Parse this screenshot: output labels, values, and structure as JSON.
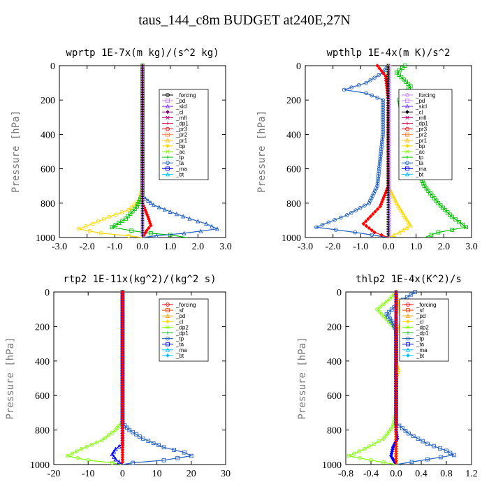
{
  "figure": {
    "title": "taus_144_c8m  BUDGET at240E,27N"
  },
  "chart_data": [
    {
      "type": "line",
      "title": "wprtp  1E-7x(m kg)/(s^2 kg)",
      "ylabel": "Pressure [hPa]",
      "xlabel": "",
      "xlim": [
        -3.0,
        3.0
      ],
      "ylim": [
        1000,
        0
      ],
      "xticks": [
        "-3.0",
        "-2.0",
        "-1.0",
        "0.0",
        "1.0",
        "2.0",
        "3.0"
      ],
      "xtick_values": [
        -3,
        -2,
        -1,
        0,
        1,
        2,
        3
      ],
      "yticks": [
        "0",
        "200",
        "400",
        "600",
        "800",
        "1000"
      ],
      "ytick_values": [
        0,
        200,
        400,
        600,
        800,
        1000
      ],
      "legend": [
        "_forcing",
        "_pd",
        "_sicl",
        "_cl",
        "_mfl",
        "_dp1",
        "_pr3",
        "_pr2",
        "_pr1",
        "_bp",
        "_ac",
        "_tp",
        "_ta",
        "_ma",
        "_bt"
      ],
      "legend_colors": [
        "#000000",
        "#c080ff",
        "#8040ff",
        "#800080",
        "#c00080",
        "#e01060",
        "#ff0000",
        "#ff8040",
        "#ffc000",
        "#ffd800",
        "#80ff00",
        "#00c000",
        "#2060c0",
        "#0000ff",
        "#00c0ff"
      ],
      "series": [
        {
          "name": "_pr1",
          "color": "#ffd800",
          "points": [
            [
              0,
              0
            ],
            [
              0,
              700
            ],
            [
              -0.1,
              780
            ],
            [
              -0.5,
              840
            ],
            [
              -1.2,
              880
            ],
            [
              -1.8,
              920
            ],
            [
              -2.3,
              950
            ],
            [
              -1.5,
              975
            ],
            [
              -0.5,
              990
            ],
            [
              0,
              1000
            ]
          ]
        },
        {
          "name": "_ac",
          "color": "#00c000",
          "points": [
            [
              0,
              0
            ],
            [
              0,
              750
            ],
            [
              -0.2,
              820
            ],
            [
              -0.6,
              890
            ],
            [
              -1.1,
              940
            ],
            [
              -0.4,
              960
            ],
            [
              0.3,
              975
            ],
            [
              1.0,
              985
            ],
            [
              1.6,
              1000
            ]
          ]
        },
        {
          "name": "_tp",
          "color": "#2060c0",
          "points": [
            [
              0,
              0
            ],
            [
              0,
              760
            ],
            [
              0.4,
              810
            ],
            [
              1.0,
              850
            ],
            [
              1.7,
              890
            ],
            [
              2.3,
              920
            ],
            [
              2.7,
              950
            ],
            [
              1.5,
              975
            ],
            [
              0.5,
              990
            ],
            [
              0,
              1000
            ]
          ]
        },
        {
          "name": "_dp1",
          "color": "#ff0000",
          "points": [
            [
              0,
              0
            ],
            [
              0,
              800
            ],
            [
              0.2,
              880
            ],
            [
              0.3,
              930
            ],
            [
              0.15,
              960
            ],
            [
              0,
              1000
            ]
          ]
        },
        {
          "name": "_bp",
          "color": "#c080ff",
          "points": [
            [
              0,
              0
            ],
            [
              0,
              1000
            ]
          ]
        },
        {
          "name": "_forcing",
          "color": "#000000",
          "points": [
            [
              0,
              0
            ],
            [
              0,
              1000
            ]
          ]
        }
      ]
    },
    {
      "type": "line",
      "title": "wpthlp  1E-4x(m K)/s^2",
      "ylabel": "Pressure [hPa]",
      "xlabel": "",
      "xlim": [
        -3.0,
        3.0
      ],
      "ylim": [
        1000,
        0
      ],
      "xticks": [
        "-3.0",
        "-2.0",
        "-1.0",
        "0.0",
        "1.0",
        "2.0",
        "3.0"
      ],
      "xtick_values": [
        -3,
        -2,
        -1,
        0,
        1,
        2,
        3
      ],
      "yticks": [
        "0",
        "200",
        "400",
        "600",
        "800",
        "1000"
      ],
      "ytick_values": [
        0,
        200,
        400,
        600,
        800,
        1000
      ],
      "legend": [
        "_forcing",
        "_pd",
        "_sicl",
        "_cl",
        "_mfl",
        "_dp1",
        "_pr3",
        "_pr2",
        "_pr1",
        "_bp",
        "_ac",
        "_tp",
        "_ta",
        "_ma",
        "_bt"
      ],
      "legend_colors": [
        "#c080ff",
        "#c080ff",
        "#8040ff",
        "#000000",
        "#c00080",
        "#e01060",
        "#ff0000",
        "#ff8040",
        "#ffc000",
        "#ffd800",
        "#80ff00",
        "#00c000",
        "#2060c0",
        "#0000ff",
        "#00c0ff"
      ],
      "series": [
        {
          "name": "_tp",
          "color": "#2060c0",
          "points": [
            [
              0,
              0
            ],
            [
              -0.2,
              40
            ],
            [
              -0.8,
              100
            ],
            [
              -1.6,
              140
            ],
            [
              -0.8,
              160
            ],
            [
              -0.2,
              200
            ],
            [
              -0.2,
              400
            ],
            [
              -0.4,
              700
            ],
            [
              -0.7,
              800
            ],
            [
              -1.5,
              870
            ],
            [
              -2.6,
              940
            ],
            [
              -1.2,
              970
            ],
            [
              0,
              1000
            ]
          ]
        },
        {
          "name": "_ac",
          "color": "#00c000",
          "points": [
            [
              0.6,
              0
            ],
            [
              0.3,
              40
            ],
            [
              0.8,
              120
            ],
            [
              0.4,
              200
            ],
            [
              0.5,
              300
            ],
            [
              0.8,
              500
            ],
            [
              1.3,
              700
            ],
            [
              1.8,
              800
            ],
            [
              2.3,
              880
            ],
            [
              2.8,
              940
            ],
            [
              1.8,
              970
            ],
            [
              1.3,
              1000
            ]
          ]
        },
        {
          "name": "_pr1",
          "color": "#ffd800",
          "points": [
            [
              0,
              0
            ],
            [
              0,
              700
            ],
            [
              0.3,
              800
            ],
            [
              0.6,
              880
            ],
            [
              0.8,
              930
            ],
            [
              0.4,
              970
            ],
            [
              0,
              1000
            ]
          ]
        },
        {
          "name": "_dp1",
          "color": "#ff0000",
          "points": [
            [
              -0.4,
              0
            ],
            [
              -0.1,
              60
            ],
            [
              0,
              200
            ],
            [
              0,
              700
            ],
            [
              -0.3,
              820
            ],
            [
              -0.9,
              920
            ],
            [
              -0.5,
              970
            ],
            [
              0,
              1000
            ]
          ]
        },
        {
          "name": "_cl",
          "color": "#000000",
          "points": [
            [
              0,
              0
            ],
            [
              0,
              1000
            ]
          ]
        },
        {
          "name": "_pd",
          "color": "#c080ff",
          "points": [
            [
              0.05,
              0
            ],
            [
              0.05,
              1000
            ]
          ]
        }
      ]
    },
    {
      "type": "line",
      "title": "rtp2  1E-11x(kg^2)/(kg^2 s)",
      "ylabel": "Pressure [hPa]",
      "xlabel": "",
      "xlim": [
        -20,
        30
      ],
      "ylim": [
        1000,
        0
      ],
      "xticks": [
        "-20",
        "-10",
        "0",
        "10",
        "20",
        "30"
      ],
      "xtick_values": [
        -20,
        -10,
        0,
        10,
        20,
        30
      ],
      "yticks": [
        "0",
        "200",
        "400",
        "600",
        "800",
        "1000"
      ],
      "ytick_values": [
        0,
        200,
        400,
        600,
        800,
        1000
      ],
      "legend": [
        "_forcing",
        "_sf",
        "_pd",
        "_cl",
        "_dp2",
        "_dp1",
        "_tp",
        "_ta",
        "_ma",
        "_bt"
      ],
      "legend_colors": [
        "#ff0000",
        "#ff4000",
        "#ffa000",
        "#ffd800",
        "#80ff00",
        "#00c000",
        "#2060c0",
        "#0000ff",
        "#00c0ff",
        "#00c0ff"
      ],
      "series": [
        {
          "name": "_dp1",
          "color": "#80ff00",
          "points": [
            [
              0,
              0
            ],
            [
              0,
              750
            ],
            [
              -2,
              800
            ],
            [
              -6,
              860
            ],
            [
              -12,
              910
            ],
            [
              -16,
              950
            ],
            [
              -10,
              975
            ],
            [
              -3,
              990
            ],
            [
              0,
              1000
            ]
          ]
        },
        {
          "name": "_tp",
          "color": "#2060c0",
          "points": [
            [
              0,
              0
            ],
            [
              0,
              760
            ],
            [
              2,
              800
            ],
            [
              6,
              850
            ],
            [
              12,
              900
            ],
            [
              18,
              930
            ],
            [
              20,
              950
            ],
            [
              12,
              975
            ],
            [
              3,
              990
            ],
            [
              0,
              1000
            ]
          ]
        },
        {
          "name": "_ta",
          "color": "#0000ff",
          "points": [
            [
              0,
              0
            ],
            [
              0,
              880
            ],
            [
              -2,
              910
            ],
            [
              -3,
              940
            ],
            [
              -2,
              970
            ],
            [
              0,
              1000
            ]
          ]
        },
        {
          "name": "_forcing",
          "color": "#ff0000",
          "points": [
            [
              0,
              0
            ],
            [
              0,
              1000
            ]
          ]
        }
      ]
    },
    {
      "type": "line",
      "title": "thlp2  1E-4x(K^2)/s",
      "ylabel": "Pressure [hPa]",
      "xlabel": "",
      "xlim": [
        -0.8,
        1.2
      ],
      "ylim": [
        1000,
        0
      ],
      "xticks": [
        "-0.8",
        "-0.4",
        "0.0",
        "0.4",
        "0.8",
        "1.2"
      ],
      "xtick_values": [
        -0.8,
        -0.4,
        0.0,
        0.4,
        0.8,
        1.2
      ],
      "yticks": [
        "0",
        "200",
        "400",
        "600",
        "800",
        "1000"
      ],
      "ytick_values": [
        0,
        200,
        400,
        600,
        800,
        1000
      ],
      "legend": [
        "_forcing",
        "_sf",
        "_pd",
        "_cl",
        "_dp2",
        "_dp1",
        "_tp",
        "_ta",
        "_ma",
        "_bt"
      ],
      "legend_colors": [
        "#ff0000",
        "#ff4000",
        "#ffa000",
        "#ffd800",
        "#80ff00",
        "#00c000",
        "#2060c0",
        "#0000ff",
        "#00c0ff",
        "#00c0ff"
      ],
      "series": [
        {
          "name": "_dp1",
          "color": "#80ff00",
          "points": [
            [
              0,
              0
            ],
            [
              -0.1,
              40
            ],
            [
              -0.3,
              100
            ],
            [
              -0.15,
              160
            ],
            [
              0,
              220
            ],
            [
              0,
              700
            ],
            [
              -0.05,
              780
            ],
            [
              -0.2,
              850
            ],
            [
              -0.5,
              910
            ],
            [
              -0.75,
              950
            ],
            [
              -0.4,
              975
            ],
            [
              0,
              1000
            ]
          ]
        },
        {
          "name": "_tp",
          "color": "#2060c0",
          "points": [
            [
              0.3,
              0
            ],
            [
              0.05,
              60
            ],
            [
              -0.15,
              130
            ],
            [
              -0.05,
              180
            ],
            [
              0,
              220
            ],
            [
              0,
              760
            ],
            [
              0.2,
              820
            ],
            [
              0.5,
              880
            ],
            [
              0.8,
              920
            ],
            [
              0.92,
              945
            ],
            [
              0.5,
              970
            ],
            [
              0,
              1000
            ]
          ]
        },
        {
          "name": "_cl",
          "color": "#ffd800",
          "points": [
            [
              0,
              0
            ],
            [
              0.05,
              100
            ],
            [
              0.1,
              150
            ],
            [
              0.05,
              200
            ],
            [
              0,
              250
            ],
            [
              0,
              400
            ],
            [
              0.04,
              450
            ],
            [
              0,
              500
            ],
            [
              0,
              1000
            ]
          ]
        },
        {
          "name": "_ta",
          "color": "#0000ff",
          "points": [
            [
              0,
              0
            ],
            [
              0,
              800
            ],
            [
              0.02,
              850
            ],
            [
              -0.05,
              900
            ],
            [
              -0.08,
              950
            ],
            [
              0,
              1000
            ]
          ]
        },
        {
          "name": "_forcing",
          "color": "#ff0000",
          "points": [
            [
              0,
              0
            ],
            [
              0,
              1000
            ]
          ]
        }
      ]
    }
  ]
}
